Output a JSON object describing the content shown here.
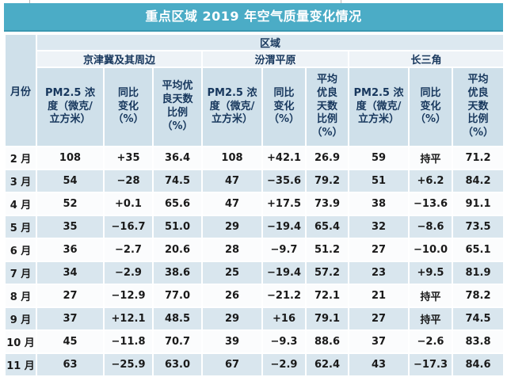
{
  "title": "重点区域 2019 年空气质量变化情况",
  "table": {
    "month_header": "月份",
    "region_header": "区域",
    "regions": [
      {
        "name": "京津冀及其周边",
        "columns": [
          "PM2.5 浓\n度（微克/\n立方米）",
          "同比\n变化\n（%）",
          "平均优\n良天数\n比例\n（%）"
        ]
      },
      {
        "name": "汾渭平原",
        "columns": [
          "PM2.5 浓\n度（微克/\n立方米）",
          "同比\n变化\n（%）",
          "平均\n优良\n天数\n比例\n（%）"
        ]
      },
      {
        "name": "长三角",
        "columns": [
          "PM2.5 浓\n度（微克/\n立方米）",
          "同比\n变化\n（%）",
          "平均\n优良\n天数\n比例\n（%）"
        ]
      }
    ],
    "rows": [
      {
        "month": "2 月",
        "cells": [
          "108",
          "+35",
          "36.4",
          "108",
          "+42.1",
          "26.9",
          "59",
          "持平",
          "71.2"
        ]
      },
      {
        "month": "3 月",
        "cells": [
          "54",
          "−28",
          "74.5",
          "47",
          "−35.6",
          "79.2",
          "51",
          "+6.2",
          "84.2"
        ]
      },
      {
        "month": "4 月",
        "cells": [
          "52",
          "+0.1",
          "65.6",
          "47",
          "+17.5",
          "73.9",
          "38",
          "−13.6",
          "91.1"
        ]
      },
      {
        "month": "5 月",
        "cells": [
          "35",
          "−16.7",
          "51.0",
          "29",
          "−19.4",
          "65.4",
          "32",
          "−8.6",
          "73.5"
        ]
      },
      {
        "month": "6 月",
        "cells": [
          "36",
          "−2.7",
          "20.6",
          "28",
          "−9.7",
          "51.2",
          "27",
          "−10.0",
          "65.1"
        ]
      },
      {
        "month": "7 月",
        "cells": [
          "34",
          "−2.9",
          "38.6",
          "25",
          "−19.4",
          "57.2",
          "23",
          "+9.5",
          "81.9"
        ]
      },
      {
        "month": "8 月",
        "cells": [
          "27",
          "−12.9",
          "77.0",
          "26",
          "−21.2",
          "72.1",
          "21",
          "持平",
          "78.2"
        ]
      },
      {
        "month": "9 月",
        "cells": [
          "37",
          "+12.1",
          "48.5",
          "29",
          "+16",
          "79.1",
          "27",
          "持平",
          "74.5"
        ]
      },
      {
        "month": "10 月",
        "cells": [
          "45",
          "−11.8",
          "70.7",
          "39",
          "−9.3",
          "88.6",
          "37",
          "−2.6",
          "83.8"
        ]
      },
      {
        "month": "11 月",
        "cells": [
          "63",
          "−25.9",
          "63.0",
          "67",
          "−2.9",
          "62.4",
          "43",
          "−17.3",
          "84.6"
        ]
      }
    ]
  },
  "colors": {
    "title_bg": "#4bacc6",
    "title_border": "#3a97b0",
    "header_bg": "#cfe0ea",
    "region_row_bg": "#dce8f0",
    "region_name_bg": "#eef3f7",
    "row_white_bg": "#fbfcfd",
    "row_blue_bg": "#d9e6ee",
    "header_text": "#17375d",
    "data_text": "#1a1a1a"
  }
}
